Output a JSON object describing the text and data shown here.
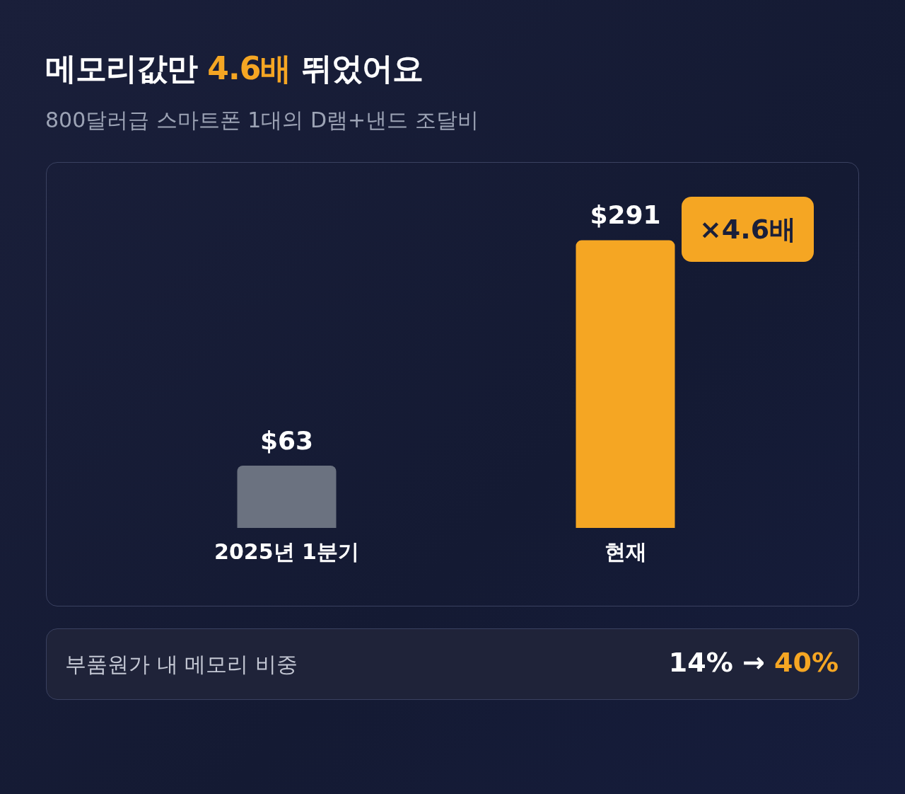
{
  "chart_data": {
    "type": "bar",
    "title": "메모리값만 4.6배 뛰었어요",
    "subtitle": "800달러급 스마트폰 1대의 D램+낸드 조달비",
    "categories": [
      "2025년 1분기",
      "현재"
    ],
    "values": [
      63,
      291
    ],
    "colors": [
      "#6b7280",
      "#f5a623"
    ],
    "value_labels": [
      "$63",
      "$291"
    ],
    "tick_labels": "x",
    "annotations": [
      "×4.6배",
      "부품원가 내 메모리 비중",
      "14% → 40%"
    ]
  }
}
